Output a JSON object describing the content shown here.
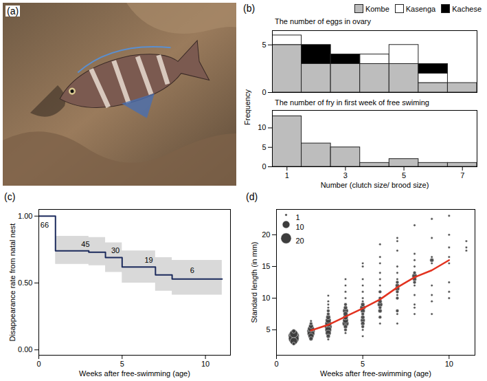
{
  "chart_data": [
    {
      "type": "image",
      "panel": "(a)"
    },
    {
      "type": "histogram",
      "panel": "(b)",
      "title": "The number of eggs in ovary",
      "bins": [
        0.5,
        1.5,
        2.5,
        3.5,
        4.5,
        5.5,
        6.5,
        7.5
      ],
      "series": [
        {
          "name": "Kombe",
          "color": "#bdbdbd",
          "values": [
            5,
            3,
            3,
            3,
            3,
            1,
            1
          ]
        },
        {
          "name": "Kasenga",
          "color": "#ffffff",
          "values": [
            1,
            0,
            0,
            1,
            2,
            1,
            0
          ]
        },
        {
          "name": "Kachese",
          "color": "#000000",
          "values": [
            0,
            2,
            1,
            0,
            0,
            1,
            0
          ]
        }
      ],
      "stacked": true,
      "legend": "top-right",
      "tick_labels": "y",
      "ylabel": "Frequency",
      "xlim": [
        0.5,
        7.5
      ],
      "ylim": [
        0,
        6.5
      ],
      "yticks": [
        0,
        5
      ]
    },
    {
      "type": "histogram",
      "title": "The number of fry in first week of free swiming",
      "bins": [
        0.5,
        1.5,
        2.5,
        3.5,
        4.5,
        5.5,
        6.5,
        7.5
      ],
      "series": [
        {
          "name": "Kombe",
          "color": "#bdbdbd",
          "values": [
            13,
            6,
            5,
            1,
            2,
            1,
            1
          ]
        }
      ],
      "xlabel": "Number (clutch size/ brood size)",
      "xlim": [
        0.5,
        7.5
      ],
      "xticks": [
        1,
        3,
        5,
        7
      ],
      "ylim": [
        0,
        14.5
      ],
      "yticks": [
        0,
        5,
        10
      ]
    },
    {
      "type": "step",
      "panel": "(c)",
      "xlabel": "Weeks after free-swimming (age)",
      "ylabel": "Disappearance rate from natal nest",
      "x": [
        0,
        1,
        3,
        4,
        5,
        7,
        8,
        11
      ],
      "values": [
        1,
        0.74,
        0.73,
        0.69,
        0.62,
        0.56,
        0.53,
        0.53
      ],
      "band": {
        "lower": [
          1,
          0.64,
          0.63,
          0.58,
          0.5,
          0.44,
          0.41,
          0.41
        ],
        "upper": [
          1,
          0.85,
          0.84,
          0.8,
          0.74,
          0.69,
          0.67,
          0.67
        ],
        "color": "#d9d9d9"
      },
      "color": "#1b2a5c",
      "annotations": [
        {
          "x": 0.35,
          "y": 0.93,
          "text": "66"
        },
        {
          "x": 2.8,
          "y": 0.79,
          "text": "45"
        },
        {
          "x": 4.6,
          "y": 0.74,
          "text": "30"
        },
        {
          "x": 6.6,
          "y": 0.67,
          "text": "19"
        },
        {
          "x": 9.2,
          "y": 0.59,
          "text": "6"
        }
      ],
      "xlim": [
        0,
        11.5
      ],
      "xticks": [
        0,
        5,
        10
      ],
      "ylim": [
        -0.04,
        1.05
      ],
      "yticks": [
        {
          "value": 0,
          "label": "0.00"
        },
        {
          "value": 0.5,
          "label": "0.50"
        },
        {
          "value": 1,
          "label": "1.00"
        }
      ]
    },
    {
      "type": "scatter",
      "panel": "(d)",
      "xlabel": "Weeks after free-swimming (age)",
      "ylabel": "Standard length (in mm)",
      "color": "#3d3d3d",
      "size_legend": [
        1,
        10,
        20
      ],
      "groups": [
        {
          "x": 1,
          "y": [
            2.8,
            3.2,
            3.6,
            4.0,
            4.4,
            4.8
          ],
          "size": [
            2,
            10,
            20,
            22,
            12,
            3
          ]
        },
        {
          "x": 2,
          "y": [
            3.6,
            4.0,
            4.4,
            4.8,
            5.2,
            5.6,
            6.0,
            6.4
          ],
          "size": [
            3,
            6,
            10,
            12,
            8,
            4,
            2,
            1
          ]
        },
        {
          "x": 3,
          "y": [
            3.5,
            4.0,
            4.5,
            5.0,
            5.5,
            6.0,
            6.5,
            7.0,
            7.5,
            8.0,
            8.5,
            9.0,
            9.5,
            10.4
          ],
          "size": [
            1,
            3,
            6,
            8,
            10,
            8,
            6,
            4,
            2,
            2,
            1,
            1,
            1,
            1
          ]
        },
        {
          "x": 4,
          "y": [
            4.5,
            5.0,
            5.5,
            6.0,
            6.5,
            7.0,
            7.5,
            8.0,
            8.5,
            9.0,
            10.0,
            11.0,
            12.0,
            13.0
          ],
          "size": [
            1,
            2,
            3,
            8,
            6,
            5,
            4,
            6,
            3,
            2,
            1,
            1,
            1,
            1
          ]
        },
        {
          "x": 5,
          "y": [
            4.0,
            5.0,
            5.5,
            6.0,
            6.5,
            7.0,
            7.5,
            8.0,
            8.5,
            9.0,
            9.5,
            10.0,
            11.0,
            12.0,
            13.0,
            15.0,
            15.5
          ],
          "size": [
            1,
            1,
            2,
            3,
            4,
            3,
            2,
            4,
            6,
            3,
            1,
            1,
            1,
            1,
            1,
            1,
            1
          ]
        },
        {
          "x": 6,
          "y": [
            6.0,
            7.0,
            8.0,
            8.5,
            9.0,
            9.5,
            10.0,
            11.0,
            12.0,
            13.0,
            14.0,
            15.5,
            16.5,
            18.5
          ],
          "size": [
            1,
            2,
            3,
            2,
            5,
            3,
            2,
            2,
            1,
            1,
            1,
            1,
            1,
            1
          ]
        },
        {
          "x": 7,
          "y": [
            6.0,
            7.5,
            8.0,
            10.0,
            10.5,
            11.0,
            11.5,
            12.0,
            12.5,
            13.0,
            14.0,
            15.0,
            17.5,
            19.0,
            19.5
          ],
          "size": [
            1,
            1,
            2,
            2,
            1,
            2,
            4,
            3,
            2,
            1,
            1,
            1,
            1,
            1,
            1
          ]
        },
        {
          "x": 8,
          "y": [
            7.5,
            8.5,
            9.0,
            10.5,
            12.0,
            12.5,
            13.0,
            13.5,
            14.0,
            15.0,
            16.0,
            17.0,
            21.5
          ],
          "size": [
            1,
            1,
            1,
            1,
            1,
            2,
            3,
            5,
            2,
            1,
            1,
            1,
            1
          ]
        },
        {
          "x": 9,
          "y": [
            7.5,
            9.5,
            10.5,
            12.0,
            15.5,
            16.0,
            16.5,
            19.5,
            22.5
          ],
          "size": [
            1,
            1,
            1,
            1,
            1,
            3,
            1,
            1,
            1
          ]
        },
        {
          "x": 10,
          "y": [
            10.0,
            11.0,
            12.5,
            15.5,
            16.5,
            18.0,
            20.0,
            23.0
          ],
          "size": [
            1,
            1,
            1,
            1,
            1,
            1,
            1,
            1
          ]
        },
        {
          "x": 11,
          "y": [
            17.5,
            18.0,
            19.0
          ],
          "size": [
            1,
            1,
            1
          ]
        }
      ],
      "mean_line": {
        "x": [
          2,
          3,
          4,
          5,
          6,
          7,
          8,
          9,
          10
        ],
        "y": [
          4.9,
          5.8,
          7.1,
          8.4,
          9.8,
          11.7,
          13.3,
          14.4,
          16.0
        ],
        "color": "#e2321f"
      },
      "xlim": [
        0,
        11.5
      ],
      "xticks": [
        0,
        5,
        10
      ],
      "ylim": [
        1,
        24
      ],
      "yticks": [
        5,
        10,
        15,
        20
      ]
    }
  ]
}
